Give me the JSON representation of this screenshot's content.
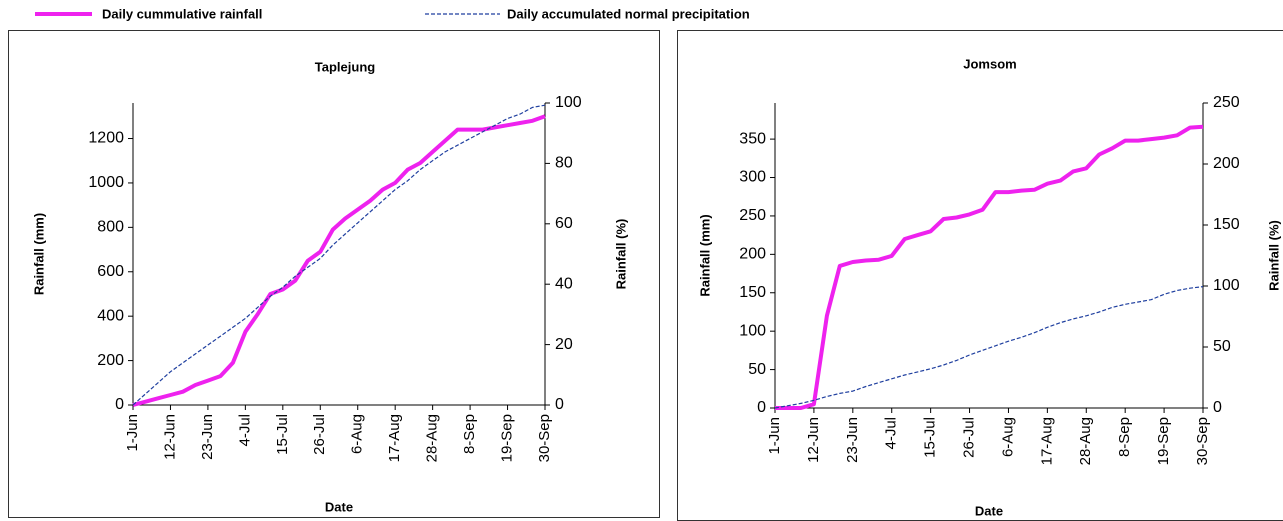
{
  "chart_data": [
    {
      "type": "line",
      "title": "Taplejung",
      "x_label": "Date",
      "y_label": "Rainfall (mm)",
      "y2_label": "Rainfall (%)",
      "categories": [
        "1-Jun",
        null,
        null,
        "12-Jun",
        null,
        null,
        "23-Jun",
        null,
        null,
        "4-Jul",
        null,
        null,
        "15-Jul",
        null,
        null,
        "26-Jul",
        null,
        null,
        "6-Aug",
        null,
        null,
        "17-Aug",
        null,
        null,
        "28-Aug",
        null,
        null,
        "8-Sep",
        null,
        null,
        "19-Sep",
        null,
        null,
        "30-Sep"
      ],
      "ylim": [
        0,
        1360
      ],
      "yticks": [
        0,
        200,
        400,
        600,
        800,
        1000,
        1200
      ],
      "y2lim": [
        0,
        100
      ],
      "y2ticks": [
        0,
        20,
        40,
        60,
        80,
        100
      ],
      "series": [
        {
          "name": "Daily cummulative rainfall",
          "color": "#ee22ee",
          "values": [
            0,
            15,
            30,
            45,
            60,
            90,
            110,
            130,
            190,
            330,
            410,
            500,
            520,
            560,
            650,
            690,
            790,
            840,
            880,
            920,
            970,
            1000,
            1060,
            1090,
            1140,
            1190,
            1240,
            1240,
            1240,
            1250,
            1260,
            1270,
            1280,
            1300
          ]
        },
        {
          "name": "Daily accumulated normal precipitation",
          "color": "#1f3f9f",
          "values": [
            0,
            50,
            100,
            150,
            190,
            230,
            270,
            310,
            350,
            390,
            440,
            490,
            530,
            580,
            620,
            660,
            720,
            770,
            820,
            870,
            920,
            970,
            1010,
            1060,
            1100,
            1140,
            1170,
            1200,
            1230,
            1260,
            1290,
            1310,
            1340,
            1350
          ]
        }
      ]
    },
    {
      "type": "line",
      "title": "Jomsom",
      "x_label": "Date",
      "y_label": "Rainfall (mm)",
      "y2_label": "Rainfall (%)",
      "categories": [
        "1-Jun",
        null,
        null,
        "12-Jun",
        null,
        null,
        "23-Jun",
        null,
        null,
        "4-Jul",
        null,
        null,
        "15-Jul",
        null,
        null,
        "26-Jul",
        null,
        null,
        "6-Aug",
        null,
        null,
        "17-Aug",
        null,
        null,
        "28-Aug",
        null,
        null,
        "8-Sep",
        null,
        null,
        "19-Sep",
        null,
        null,
        "30-Sep"
      ],
      "ylim": [
        0,
        397
      ],
      "yticks": [
        0,
        50,
        100,
        150,
        200,
        250,
        300,
        350
      ],
      "y2lim": [
        0,
        250
      ],
      "y2ticks": [
        0,
        50,
        100,
        150,
        200,
        250
      ],
      "series": [
        {
          "color": "#ee22ee",
          "values": [
            0,
            0,
            0,
            5,
            120,
            185,
            190,
            192,
            193,
            198,
            220,
            225,
            230,
            246,
            248,
            252,
            258,
            281,
            281,
            283,
            284,
            292,
            296,
            308,
            312,
            330,
            338,
            348,
            348,
            350,
            352,
            355,
            365,
            366
          ]
        },
        {
          "color": "#1f3f9f",
          "values": [
            0,
            3,
            6,
            10,
            15,
            19,
            22,
            28,
            33,
            38,
            43,
            47,
            51,
            56,
            62,
            69,
            75,
            81,
            87,
            92,
            98,
            105,
            111,
            116,
            120,
            125,
            131,
            135,
            138,
            141,
            148,
            153,
            156,
            158
          ]
        }
      ]
    }
  ]
}
